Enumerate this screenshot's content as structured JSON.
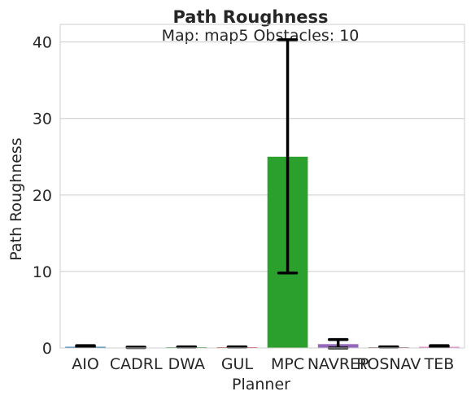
{
  "chart_data": {
    "type": "bar",
    "title": "Path Roughness",
    "subtitle": "Map: map5 Obstacles: 10",
    "xlabel": "Planner",
    "ylabel": "Path Roughness",
    "ylim": [
      0,
      42.3
    ],
    "yticks": [
      0,
      10,
      20,
      30,
      40
    ],
    "grid": "horizontal",
    "categories": [
      "AIO",
      "CADRL",
      "DWA",
      "GUL",
      "MPC",
      "NAVREP",
      "ROSNAV",
      "TEB"
    ],
    "values": [
      0.15,
      0.05,
      0.1,
      0.1,
      25.0,
      0.5,
      0.1,
      0.15
    ],
    "error_low": [
      0.15,
      0.05,
      0.1,
      0.1,
      9.8,
      0.0,
      0.1,
      0.15
    ],
    "error_high": [
      0.3,
      0.1,
      0.15,
      0.15,
      40.3,
      1.1,
      0.15,
      0.3
    ],
    "colors": [
      "#1f77b4",
      "#ff7f0e",
      "#2ca02c",
      "#d62728",
      "#2ca02c",
      "#9467bd",
      "#8c564b",
      "#e377c2"
    ]
  }
}
